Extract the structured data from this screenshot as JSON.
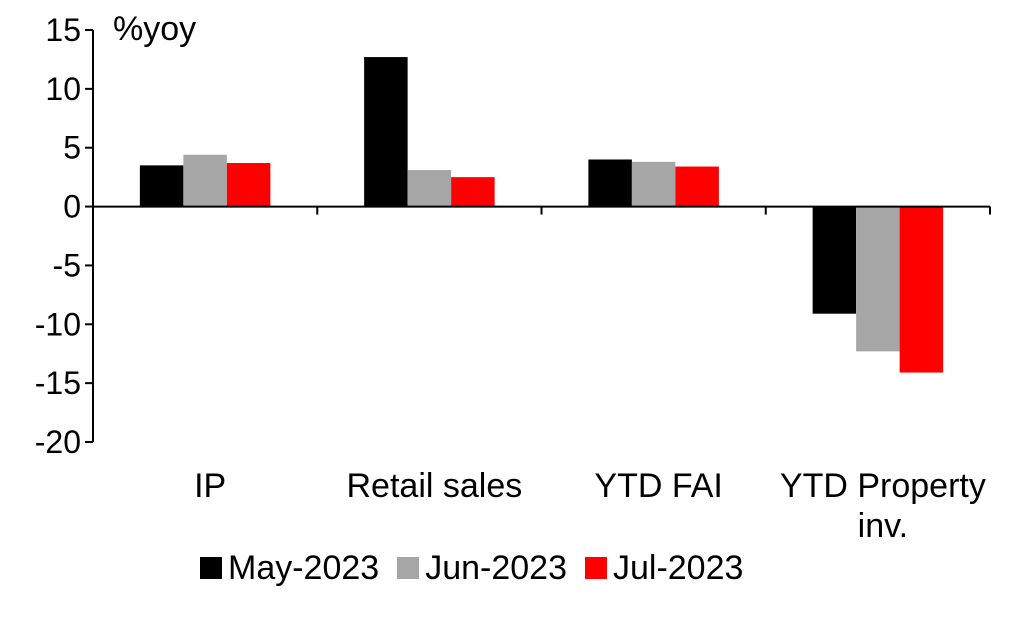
{
  "chart_data": {
    "type": "bar",
    "ylabel": "%yoy",
    "ylim": [
      -20,
      15
    ],
    "yticks": [
      15,
      10,
      5,
      0,
      -5,
      -10,
      -15,
      -20
    ],
    "categories": [
      "IP",
      "Retail sales",
      "YTD FAI",
      "YTD Property inv."
    ],
    "category_lines": [
      [
        "IP"
      ],
      [
        "Retail sales"
      ],
      [
        "YTD FAI"
      ],
      [
        "YTD Property",
        "inv."
      ]
    ],
    "series": [
      {
        "name": "May-2023",
        "color": "#000000",
        "values": [
          3.5,
          12.7,
          4.0,
          -9.1
        ]
      },
      {
        "name": "Jun-2023",
        "color": "#a6a6a6",
        "values": [
          4.4,
          3.1,
          3.8,
          -12.3
        ]
      },
      {
        "name": "Jul-2023",
        "color": "#ff0000",
        "values": [
          3.7,
          2.5,
          3.4,
          -14.1
        ]
      }
    ],
    "legend_position": "bottom",
    "grid": false
  }
}
